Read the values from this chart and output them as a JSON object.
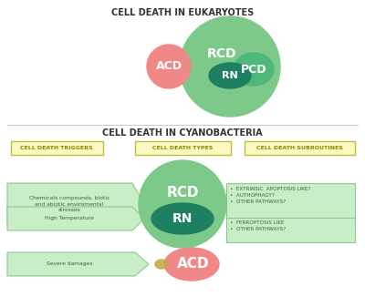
{
  "title_euk": "CELL DEATH IN EUKARYOTES",
  "title_cyan": "CELL DEATH IN CYANOBACTERIA",
  "bg_color": "#ffffff",
  "col_headers": [
    "CELL DEATH TRIGGERS",
    "CELL DEATH TYPES",
    "CELL DEATH SUBROUTINES"
  ],
  "rcd_text": "RCD",
  "pcd_text": "PCD",
  "rn_text": "RN",
  "acd_text": "ACD",
  "trigger1": "Chemicals compounds, biotic\nand abiotic enviromental\nstresses",
  "trigger2": "High Temperature",
  "trigger3": "Severe damages",
  "subroutine1": "•  EXTRINSIC  APOPTOSIS LIKE?\n•  AUTHOPHAGY?\n•  OTHER PATHWAYS?",
  "subroutine2": "•  FERROPTOSIS LIKE\n•  OTHER PATHWAYS?",
  "color_outer_green": "#7DC98A",
  "color_mid_green": "#4DB87A",
  "color_dark_green": "#1E8060",
  "color_pink": "#F08888",
  "color_yellow_face": "#FAFAC0",
  "color_yellow_edge": "#C8B840",
  "color_ltgreen_face": "#C8EEC8",
  "color_ltgreen_edge": "#90C890",
  "color_olive": "#C0A840"
}
